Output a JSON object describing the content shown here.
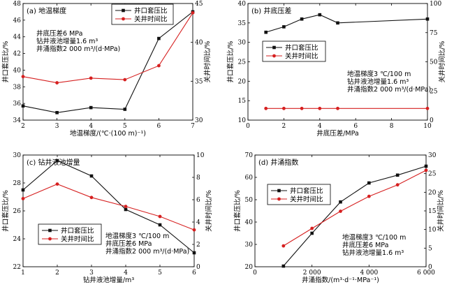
{
  "colors": {
    "series1": "#111111",
    "series2": "#d62020"
  },
  "chart_data": [
    {
      "id": "a",
      "type": "line",
      "title": "(a) 地温梯度",
      "xlabel": "地温梯度/(℃·(100 m)⁻¹)",
      "ylabel_left": "井口套压比/%",
      "ylabel_right": "关井时间比/%",
      "xlim": [
        2,
        7
      ],
      "xticks": [
        2,
        3,
        4,
        5,
        6,
        7
      ],
      "ylim_left": [
        34,
        48
      ],
      "yticks_left": [
        34,
        36,
        38,
        40,
        42,
        44,
        46,
        48
      ],
      "ylim_right": [
        30,
        45
      ],
      "yticks_right": [
        30,
        35,
        40,
        45
      ],
      "legend": [
        "井口套压比",
        "关井时间比"
      ],
      "legend_pos": "top-center",
      "annotations": [
        "井底压差6 MPa",
        "钻井液池增量1.6 m³",
        "井涌指数2 000 m³/(d·MPa)"
      ],
      "annotation_pos": "upper-left",
      "series": [
        {
          "name": "井口套压比",
          "axis": "left",
          "marker": "square",
          "color": "#111111",
          "x": [
            2,
            3,
            4,
            5,
            6,
            7
          ],
          "y": [
            35.7,
            34.9,
            35.5,
            35.3,
            43.8,
            47.0
          ]
        },
        {
          "name": "关井时间比",
          "axis": "right",
          "marker": "circle",
          "color": "#d62020",
          "x": [
            2,
            3,
            4,
            5,
            6,
            7
          ],
          "y": [
            35.6,
            34.8,
            35.4,
            35.2,
            37.0,
            43.8
          ]
        }
      ]
    },
    {
      "id": "b",
      "type": "line",
      "title": "(b) 井底压差",
      "xlabel": "井底压差/MPa",
      "ylabel_left": "井口套压比/%",
      "ylabel_right": "关井时间比/%",
      "xlim": [
        0,
        10
      ],
      "xticks": [
        0,
        2,
        4,
        6,
        8,
        10
      ],
      "ylim_left": [
        10,
        40
      ],
      "yticks_left": [
        10,
        15,
        20,
        25,
        30,
        35,
        40
      ],
      "ylim_right": [
        0,
        100
      ],
      "yticks_right": [
        0,
        25,
        50,
        75,
        100
      ],
      "legend": [
        "井口套压比",
        "关井时间比"
      ],
      "legend_pos": "upper-left",
      "annotations": [
        "地温梯度3 ℃/100 m",
        "钻井液池增量1.6 m³",
        "井涌指数2 000 m³/(d·MPa)"
      ],
      "annotation_pos": "middle-right",
      "series": [
        {
          "name": "井口套压比",
          "axis": "left",
          "marker": "square",
          "color": "#111111",
          "x": [
            1,
            2,
            3,
            4,
            5,
            10
          ],
          "y": [
            32.6,
            34.0,
            36.0,
            37.1,
            35.0,
            36.0
          ]
        },
        {
          "name": "关井时间比",
          "axis": "right",
          "marker": "circle",
          "color": "#d62020",
          "x": [
            1,
            2,
            3,
            4,
            5,
            10
          ],
          "y": [
            10,
            10,
            10,
            10,
            10,
            10
          ]
        }
      ]
    },
    {
      "id": "c",
      "type": "line",
      "title": "(c) 钻井液池增量",
      "xlabel": "钻井液池增量/m³",
      "ylabel_left": "井口套压比/%",
      "ylabel_right": "关井时间比/%",
      "xlim": [
        1,
        6
      ],
      "xticks": [
        1,
        2,
        3,
        4,
        5,
        6
      ],
      "ylim_left": [
        22,
        30
      ],
      "yticks_left": [
        22,
        24,
        26,
        28,
        30
      ],
      "ylim_right": [
        0,
        10
      ],
      "yticks_right": [
        0,
        2,
        4,
        6,
        8,
        10
      ],
      "legend": [
        "井口套压比",
        "关井时间比"
      ],
      "legend_pos": "bottom-left",
      "annotations": [
        "地温梯度3 ℃/100 m",
        "井底压差6 MPa",
        "井涌指数2 000 m³/(d·MPa)"
      ],
      "annotation_pos": "lower-right",
      "series": [
        {
          "name": "井口套压比",
          "axis": "left",
          "marker": "square",
          "color": "#111111",
          "x": [
            1,
            2,
            3,
            4,
            5,
            6
          ],
          "y": [
            27.5,
            29.6,
            28.5,
            26.1,
            25.0,
            23.0
          ]
        },
        {
          "name": "关井时间比",
          "axis": "right",
          "marker": "circle",
          "color": "#d62020",
          "x": [
            1,
            2,
            3,
            4,
            5,
            6
          ],
          "y": [
            6.1,
            7.4,
            6.2,
            5.4,
            4.5,
            3.3
          ]
        }
      ]
    },
    {
      "id": "d",
      "type": "line",
      "title": "(d) 井涌指数",
      "xlabel": "井涌指数/(m³·d⁻¹·MPa⁻¹)",
      "ylabel_left": "井口套压比/%",
      "ylabel_right": "关井时间比/%",
      "xlim": [
        0,
        6000
      ],
      "xticks": [
        0,
        2000,
        4000,
        6000
      ],
      "xticklabels": [
        "0",
        "2 000",
        "4 000",
        "6 000"
      ],
      "ylim_left": [
        20,
        70
      ],
      "yticks_left": [
        20,
        30,
        40,
        50,
        60,
        70
      ],
      "ylim_right": [
        0,
        30
      ],
      "yticks_right": [
        0,
        5,
        10,
        15,
        20,
        25,
        30
      ],
      "legend": [
        "井口套压比",
        "关井时间比"
      ],
      "legend_pos": "upper-left",
      "annotations": [
        "地温梯度3 ℃/100 m",
        "井底压差6 MPa",
        "钻井液池增量1.6 m³"
      ],
      "annotation_pos": "lower-right",
      "series": [
        {
          "name": "井口套压比",
          "axis": "left",
          "marker": "square",
          "color": "#111111",
          "x": [
            1000,
            2000,
            3000,
            4000,
            5000,
            6000
          ],
          "y": [
            20.3,
            35.0,
            49.0,
            57.5,
            61.0,
            65.0
          ]
        },
        {
          "name": "关井时间比",
          "axis": "right",
          "marker": "circle",
          "color": "#d62020",
          "x": [
            1000,
            2000,
            3000,
            4000,
            5000,
            6000
          ],
          "y": [
            5.6,
            10.3,
            14.9,
            18.9,
            22.0,
            25.9
          ]
        }
      ]
    }
  ]
}
